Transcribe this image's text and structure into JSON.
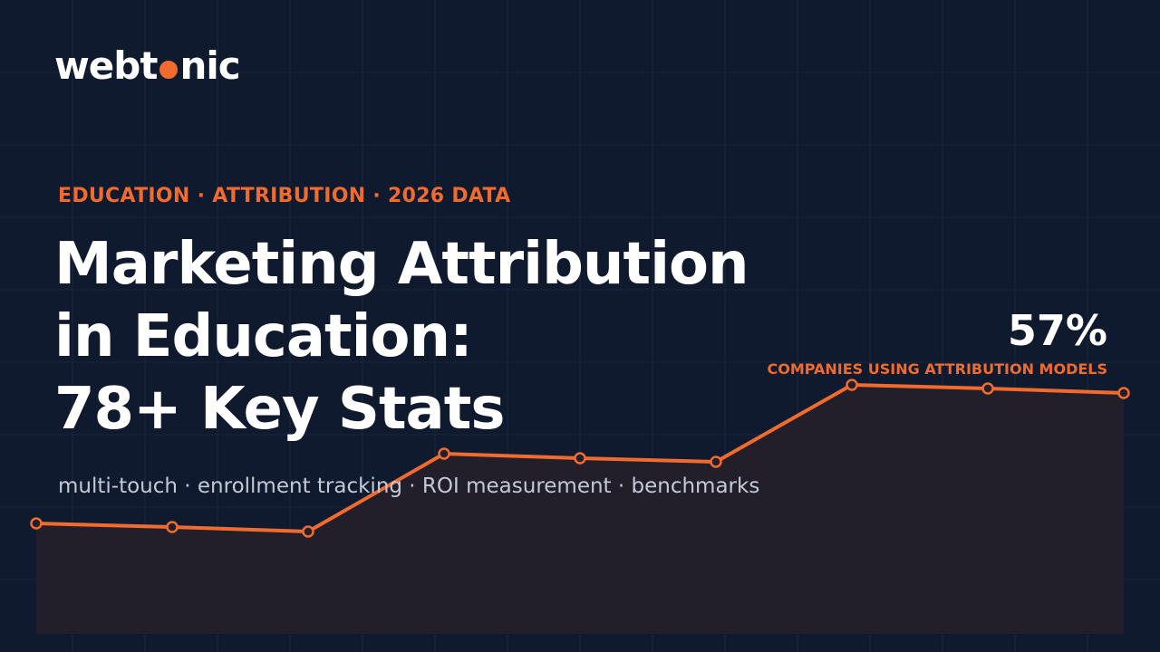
{
  "logo": {
    "parts": [
      "webt",
      "nic"
    ]
  },
  "tagline": "EDUCATION · ATTRIBUTION · 2026 DATA",
  "title": {
    "lines": [
      "Marketing Attribution",
      "in Education:",
      "78+ Key Stats"
    ]
  },
  "subtitle": "multi-touch · enrollment tracking · ROI measurement · benchmarks",
  "highlight": {
    "value": "57%",
    "label": "COMPANIES USING ATTRIBUTION MODELS"
  }
}
